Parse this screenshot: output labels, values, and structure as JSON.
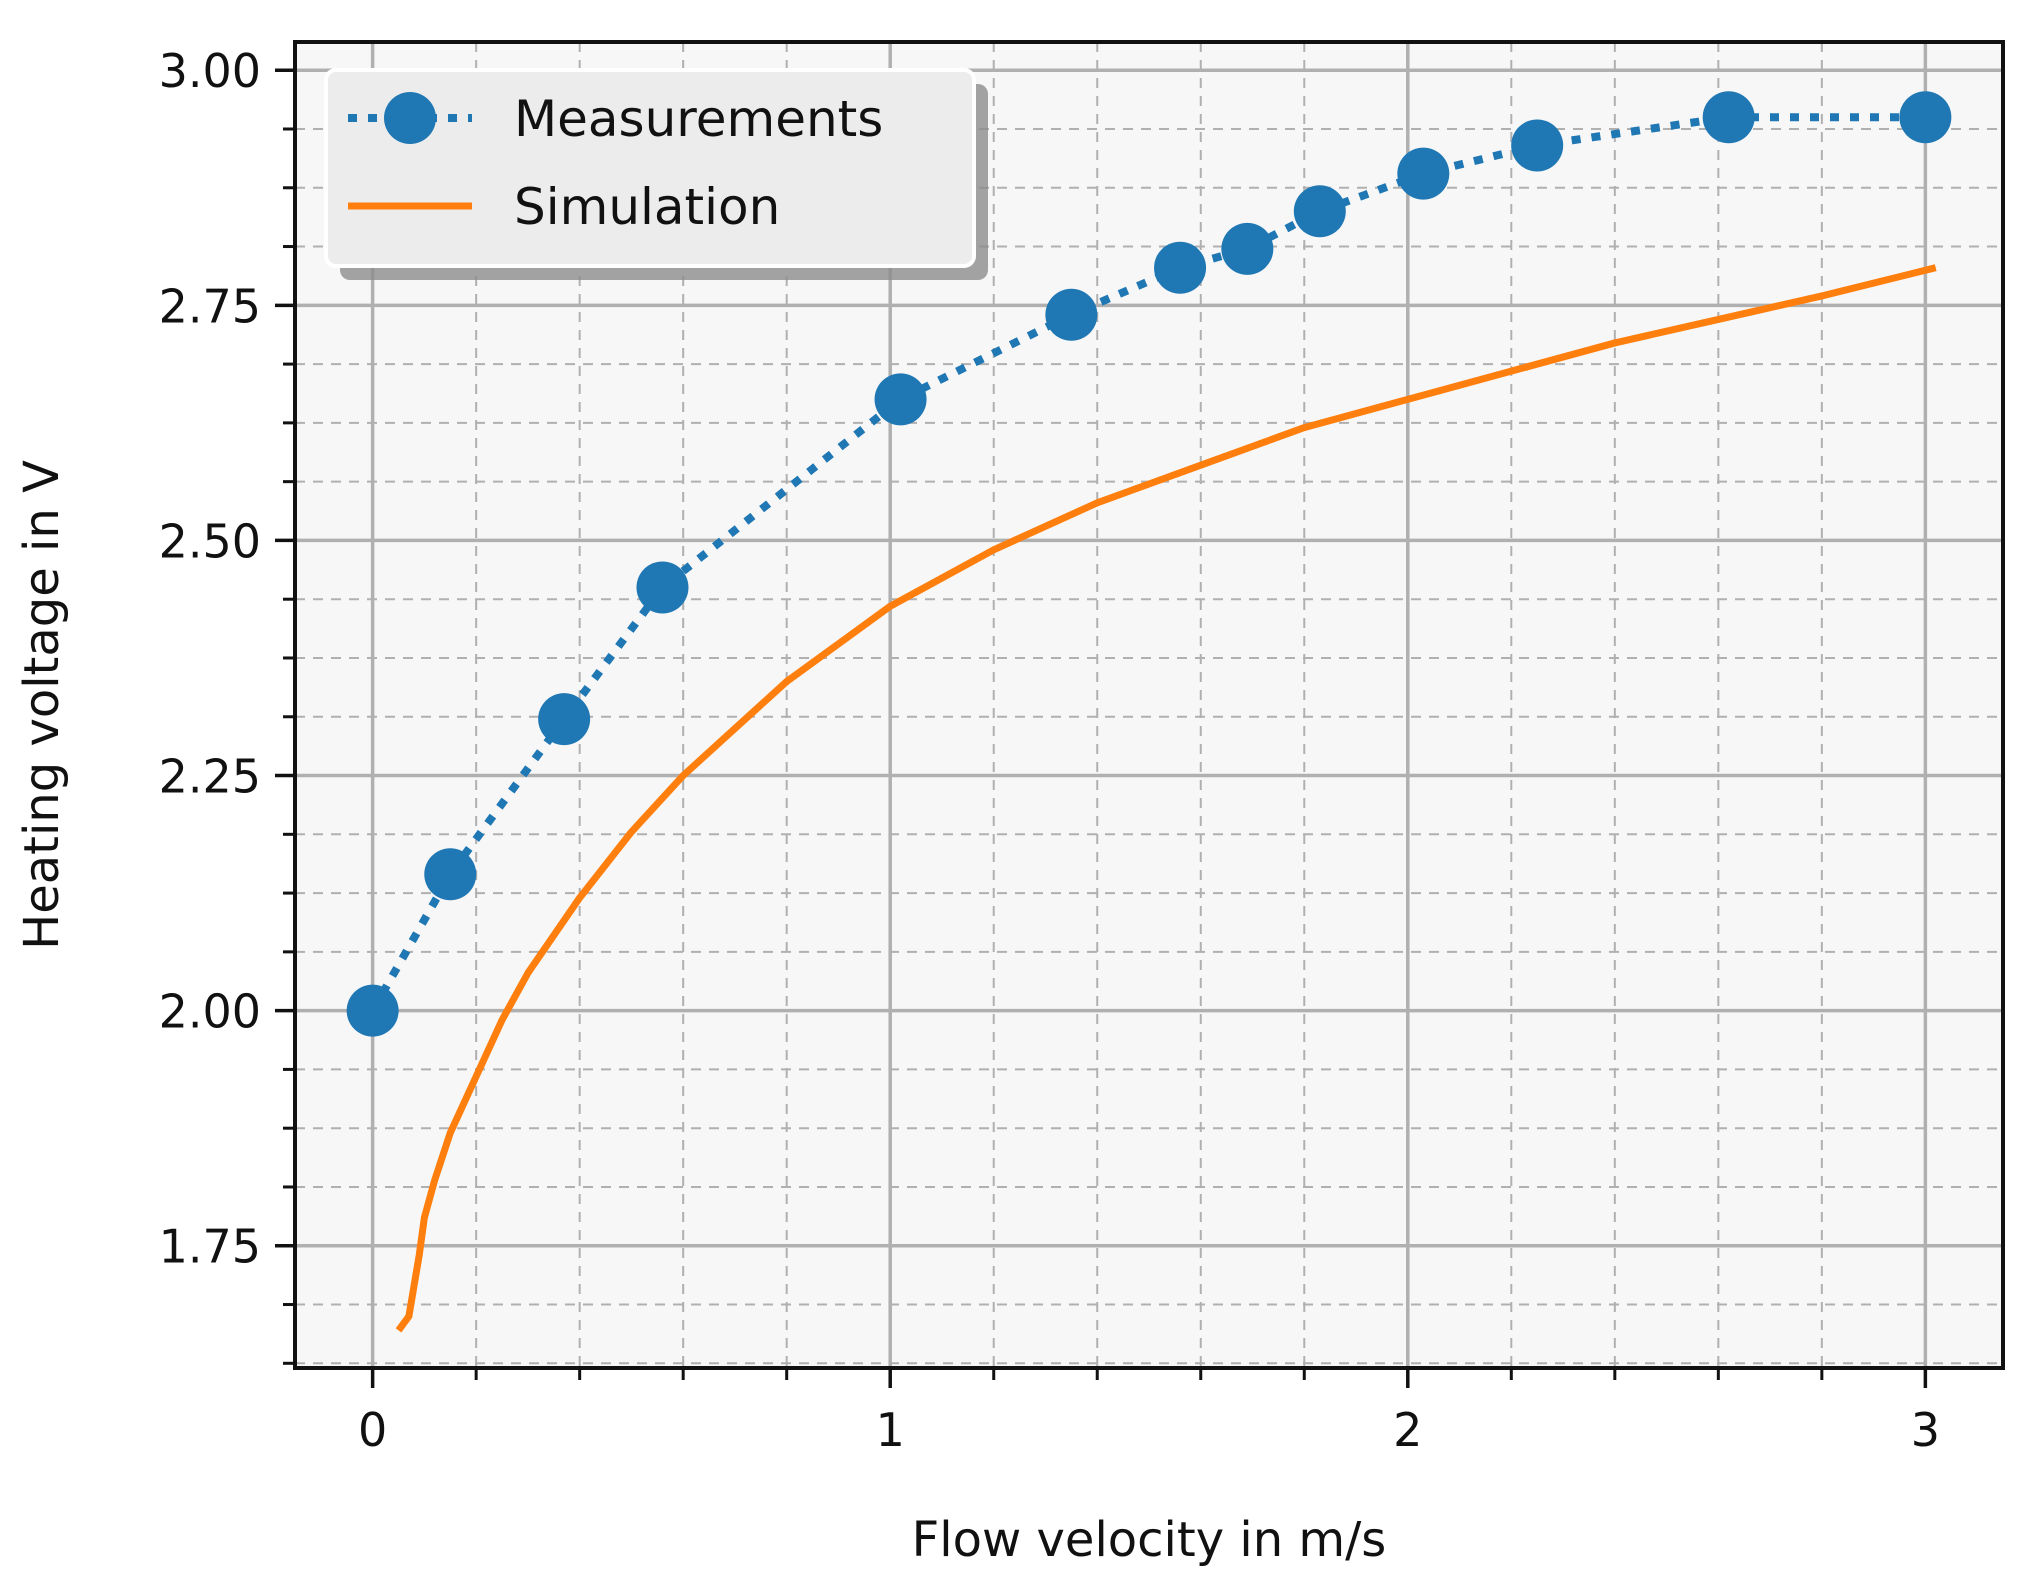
{
  "chart_data": {
    "type": "line",
    "title": "",
    "xlabel": "Flow velocity in m/s",
    "ylabel": "Heating voltage in V",
    "xlim": [
      -0.15,
      3.15
    ],
    "ylim": [
      1.62,
      3.03
    ],
    "x_major_ticks": [
      0,
      1,
      2,
      3
    ],
    "x_tick_labels": [
      "0",
      "1",
      "2",
      "3"
    ],
    "y_major_ticks": [
      1.75,
      2.0,
      2.25,
      2.5,
      2.75,
      3.0
    ],
    "y_tick_labels": [
      "1.75",
      "2.00",
      "2.25",
      "2.50",
      "2.75",
      "3.00"
    ],
    "x_minor_step": 0.2,
    "y_minor_step": 0.0625,
    "grid": true,
    "legend_position": "top-left",
    "colors": {
      "measurements": "#1f77b4",
      "simulation": "#ff7f0e",
      "grid_major": "#b0b0b0",
      "grid_minor": "#b0b0b0",
      "axes_face": "#f7f7f7"
    },
    "series": [
      {
        "name": "Measurements",
        "style": "dotted-markers",
        "x": [
          0.0,
          0.15,
          0.37,
          0.56,
          1.02,
          1.35,
          1.56,
          1.69,
          1.83,
          2.03,
          2.25,
          2.62,
          3.0
        ],
        "y": [
          2.0,
          2.145,
          2.31,
          2.45,
          2.65,
          2.74,
          2.79,
          2.81,
          2.85,
          2.89,
          2.92,
          2.95,
          2.95
        ]
      },
      {
        "name": "Simulation",
        "style": "solid",
        "x": [
          0.05,
          0.07,
          0.09,
          0.1,
          0.12,
          0.15,
          0.2,
          0.25,
          0.3,
          0.4,
          0.5,
          0.6,
          0.8,
          1.0,
          1.2,
          1.4,
          1.6,
          1.8,
          2.0,
          2.2,
          2.4,
          2.6,
          2.8,
          3.02
        ],
        "y": [
          1.66,
          1.675,
          1.74,
          1.78,
          1.82,
          1.87,
          1.93,
          1.99,
          2.04,
          2.12,
          2.19,
          2.25,
          2.35,
          2.43,
          2.49,
          2.54,
          2.58,
          2.62,
          2.65,
          2.68,
          2.71,
          2.735,
          2.76,
          2.79
        ]
      }
    ]
  }
}
